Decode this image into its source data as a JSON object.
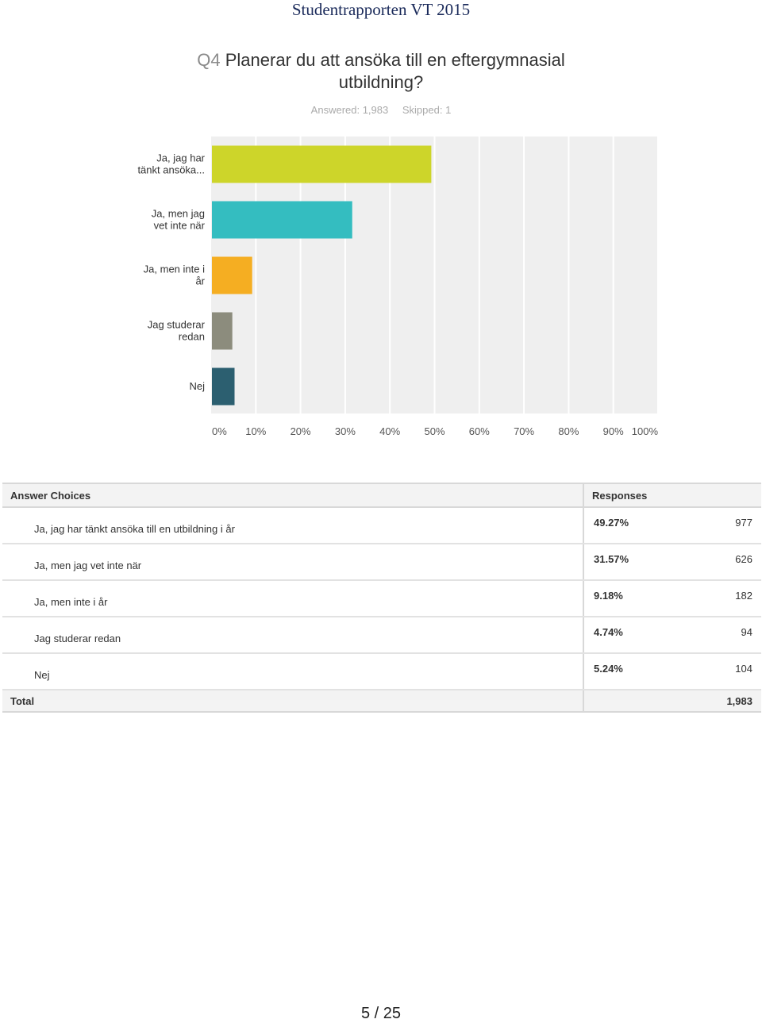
{
  "header": {
    "title": "Studentrapporten VT 2015"
  },
  "question": {
    "number": "Q4",
    "text": "Planerar du att ansöka till en eftergymnasial utbildning?",
    "answered": "Answered: 1,983",
    "skipped": "Skipped: 1"
  },
  "chart_data": {
    "type": "bar",
    "orientation": "horizontal",
    "categories": [
      [
        "Ja, jag har",
        "tänkt ansöka..."
      ],
      [
        "Ja, men jag",
        "vet inte när"
      ],
      [
        "Ja, men inte i",
        "år"
      ],
      [
        "Jag studerar",
        "redan"
      ],
      [
        "Nej"
      ]
    ],
    "values": [
      49.27,
      31.57,
      9.18,
      4.74,
      5.24
    ],
    "colors": [
      "#cdd52a",
      "#34bdc0",
      "#f5ae22",
      "#8c8c7d",
      "#2c5f70"
    ],
    "x_ticks": [
      "0%",
      "10%",
      "20%",
      "30%",
      "40%",
      "50%",
      "60%",
      "70%",
      "80%",
      "90%",
      "100%"
    ],
    "xlim": [
      0,
      100
    ],
    "grid": true,
    "title": "",
    "xlabel": "",
    "ylabel": ""
  },
  "table": {
    "headers": {
      "choices": "Answer Choices",
      "responses": "Responses"
    },
    "rows": [
      {
        "choice": "Ja, jag har tänkt ansöka till en utbildning i år",
        "pct": "49.27%",
        "count": "977"
      },
      {
        "choice": "Ja, men jag vet inte när",
        "pct": "31.57%",
        "count": "626"
      },
      {
        "choice": "Ja, men inte i år",
        "pct": "9.18%",
        "count": "182"
      },
      {
        "choice": "Jag studerar redan",
        "pct": "4.74%",
        "count": "94"
      },
      {
        "choice": "Nej",
        "pct": "5.24%",
        "count": "104"
      }
    ],
    "total_label": "Total",
    "total_value": "1,983"
  },
  "footer": {
    "page": "5 / 25"
  }
}
